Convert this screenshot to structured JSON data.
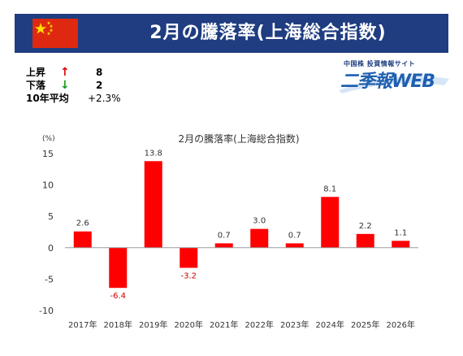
{
  "header": {
    "title": "2月の騰落率(上海総合指数)"
  },
  "stats": {
    "rise_label": "上昇",
    "rise_arrow": "↑",
    "rise_value": "8",
    "fall_label": "下落",
    "fall_arrow": "↓",
    "fall_value": "2",
    "avg_label": "10年平均",
    "avg_value": "+2.3%"
  },
  "logo": {
    "subtitle": "中国株 投資情報サイト",
    "main": "二季報WEB"
  },
  "colors": {
    "header_bg": "#1f3d80",
    "bar": "#ff0000",
    "negative_label": "#cc0000",
    "rise_arrow": "#e00000",
    "fall_arrow": "#1a9a1a"
  },
  "chart_data": {
    "type": "bar",
    "title": "2月の騰落率(上海総合指数)",
    "unit_label": "(%)",
    "categories": [
      "2017年",
      "2018年",
      "2019年",
      "2020年",
      "2021年",
      "2022年",
      "2023年",
      "2024年",
      "2025年",
      "2026年"
    ],
    "values": [
      2.6,
      -6.4,
      13.8,
      -3.2,
      0.7,
      3.0,
      0.7,
      8.1,
      2.2,
      1.1
    ],
    "value_labels": [
      "2.6",
      "-6.4",
      "13.8",
      "-3.2",
      "0.7",
      "3.0",
      "0.7",
      "8.1",
      "2.2",
      "1.1"
    ],
    "yticks": [
      15,
      10,
      5,
      0,
      -5,
      -10
    ],
    "ylim": [
      -10,
      15
    ],
    "grid": false,
    "legend": "none"
  }
}
